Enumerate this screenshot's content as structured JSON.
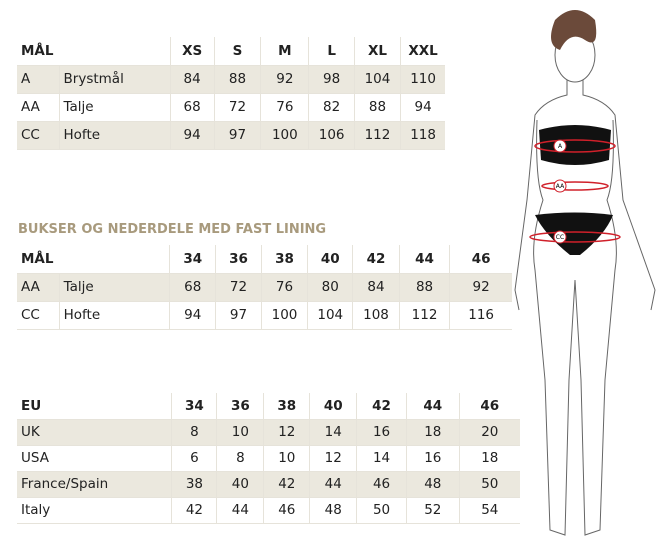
{
  "table1": {
    "headers": [
      "MÅL",
      "",
      "XS",
      "S",
      "M",
      "L",
      "XL",
      "XXL"
    ],
    "rows": [
      [
        "A",
        "Brystmål",
        "84",
        "88",
        "92",
        "98",
        "104",
        "110"
      ],
      [
        "AA",
        "Talje",
        "68",
        "72",
        "76",
        "82",
        "88",
        "94"
      ],
      [
        "CC",
        "Hofte",
        "94",
        "97",
        "100",
        "106",
        "112",
        "118"
      ]
    ]
  },
  "table2": {
    "title": "BUKSER OG NEDERDELE MED FAST LINING",
    "headers": [
      "MÅL",
      "",
      "34",
      "36",
      "38",
      "40",
      "42",
      "44",
      "46"
    ],
    "rows": [
      [
        "AA",
        "Talje",
        "68",
        "72",
        "76",
        "80",
        "84",
        "88",
        "92"
      ],
      [
        "CC",
        "Hofte",
        "94",
        "97",
        "100",
        "104",
        "108",
        "112",
        "116"
      ]
    ]
  },
  "table3": {
    "headers": [
      "EU",
      "34",
      "36",
      "38",
      "40",
      "42",
      "44",
      "46"
    ],
    "rows": [
      [
        "UK",
        "8",
        "10",
        "12",
        "14",
        "16",
        "18",
        "20"
      ],
      [
        "USA",
        "6",
        "8",
        "10",
        "12",
        "14",
        "16",
        "18"
      ],
      [
        "France/Spain",
        "38",
        "40",
        "42",
        "44",
        "46",
        "48",
        "50"
      ],
      [
        "Italy",
        "42",
        "44",
        "46",
        "48",
        "50",
        "52",
        "54"
      ]
    ]
  },
  "figure": {
    "markers": [
      "A",
      "AA",
      "CC"
    ]
  },
  "colors": {
    "accent": "#a89a7d",
    "stripe": "#ebe8de",
    "measure": "#d0202a"
  }
}
